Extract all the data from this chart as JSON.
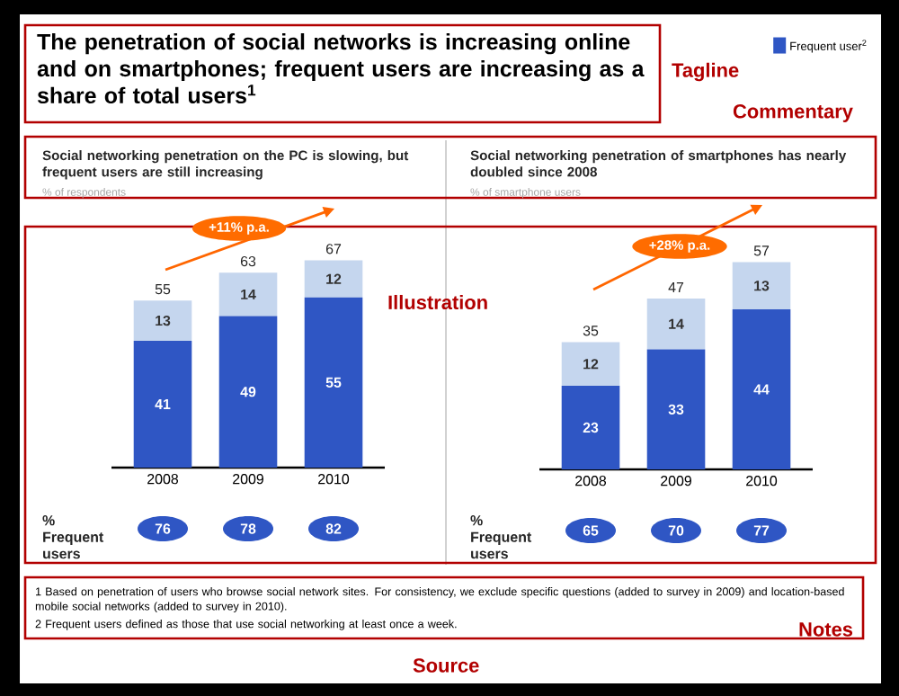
{
  "chart_data": [
    {
      "type": "bar",
      "title": "Social networking penetration on the PC is slowing, but frequent users are still increasing",
      "subtitle": "% of respondents",
      "categories": [
        "2008",
        "2009",
        "2010"
      ],
      "stacked": true,
      "data_labels": true,
      "totals": [
        "55",
        "63",
        "67"
      ],
      "legend": "top right",
      "series": [
        {
          "name": "Frequent user$^{2}$",
          "color": "#2f56c4",
          "values": [
            41,
            49,
            55
          ]
        },
        {
          "color": "#c5d6ee",
          "values": [
            13,
            14,
            12
          ]
        }
      ],
      "annotations": [
        "The penetration of social networks is increasing online and on smartphones; frequent users are increasing as a share of total users$^{1}$",
        "Tagline",
        "Commentary",
        "Illustration",
        "+11% p.a.",
        "% Frequent users",
        "76",
        "78",
        "82",
        "1 Based on penetration of users who browse social network sites. For consistency, we exclude specific questions (added to survey in 2009) and location-based mobile social networks (added to survey in 2010).",
        "2 Frequent users defined as those that use social networking at least once a week.",
        "Notes",
        "Source"
      ]
    },
    {
      "type": "bar",
      "title": "Social networking penetration of smartphones has nearly doubled since 2008",
      "subtitle": "% of smartphone users",
      "categories": [
        "2008",
        "2009",
        "2010"
      ],
      "stacked": true,
      "data_labels": true,
      "totals": [
        "35",
        "47",
        "57"
      ],
      "series": [
        {
          "color": "#2f56c4",
          "values": [
            23,
            33,
            44
          ]
        },
        {
          "color": "#c5d6ee",
          "values": [
            12,
            14,
            13
          ]
        }
      ],
      "annotations": [
        "+28% p.a.",
        "% Frequent users",
        "65",
        "70",
        "77"
      ]
    }
  ]
}
